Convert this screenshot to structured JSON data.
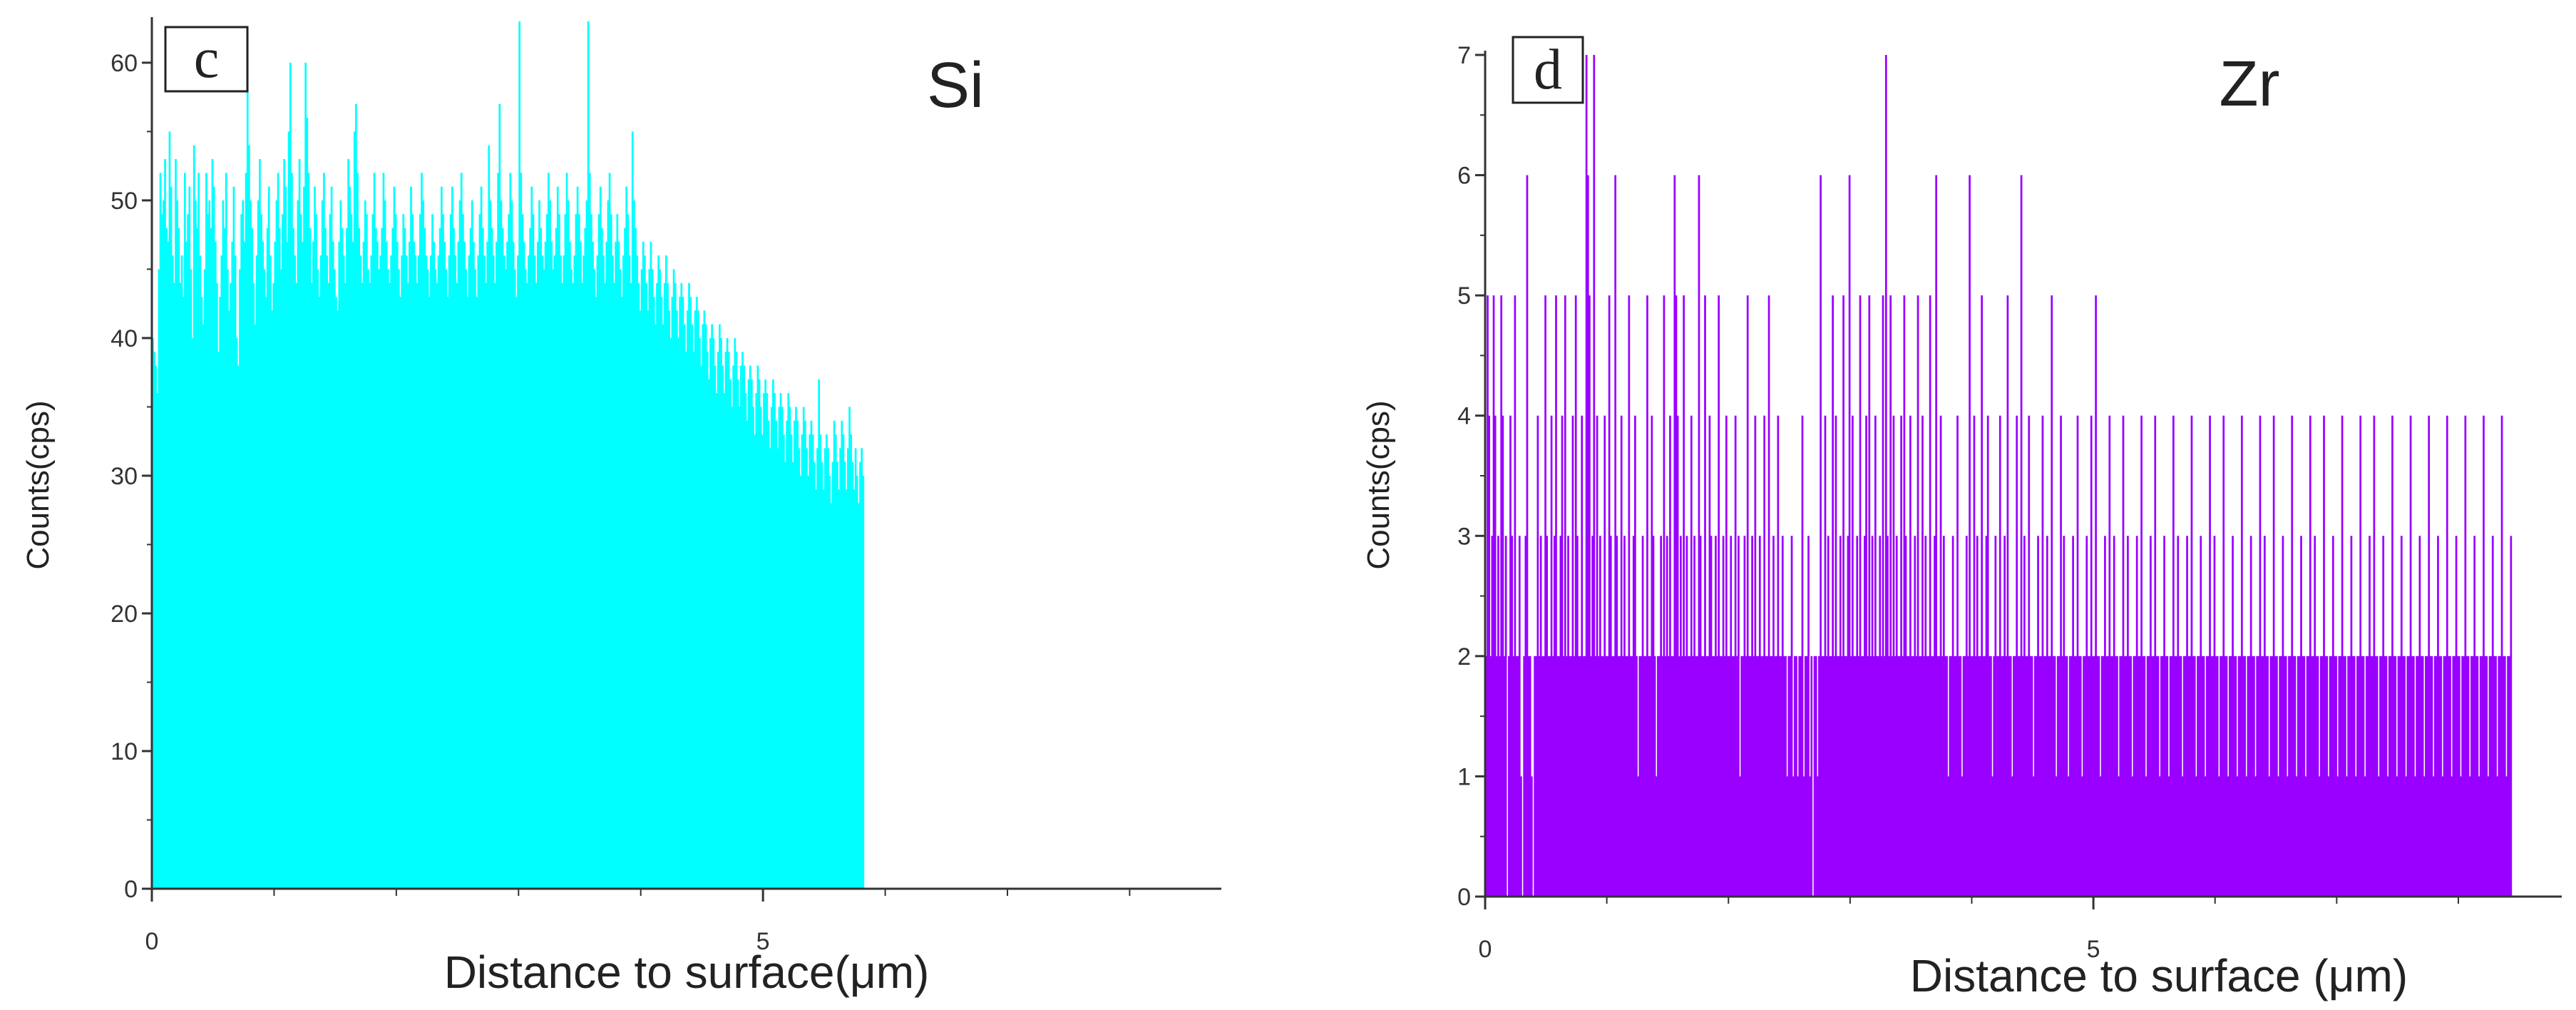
{
  "chart_data": [
    {
      "type": "bar",
      "panel_label": "c",
      "element": "Si",
      "color": "#00ffff",
      "xlabel": "Distance to surface(μm)",
      "ylabel": "Counts(cps)",
      "xlim": [
        0,
        8.75
      ],
      "ylim": [
        0,
        63
      ],
      "xticks": [
        {
          "value": 0,
          "label": "0"
        },
        {
          "value": 5,
          "label": "5"
        }
      ],
      "yticks": [
        {
          "value": 0,
          "label": "0"
        },
        {
          "value": 10,
          "label": "10"
        },
        {
          "value": 20,
          "label": "20"
        },
        {
          "value": 30,
          "label": "30"
        },
        {
          "value": 40,
          "label": "40"
        },
        {
          "value": 50,
          "label": "50"
        },
        {
          "value": 60,
          "label": "60"
        }
      ],
      "bin_width": 0.0125,
      "counts": [
        40,
        39,
        38,
        36,
        45,
        52,
        49,
        50,
        53,
        48,
        47,
        55,
        51,
        46,
        44,
        53,
        50,
        48,
        44,
        46,
        43,
        52,
        47,
        49,
        51,
        45,
        40,
        54,
        50,
        48,
        52,
        46,
        43,
        41,
        45,
        52,
        49,
        50,
        48,
        53,
        51,
        47,
        44,
        39,
        43,
        46,
        50,
        48,
        52,
        45,
        42,
        44,
        47,
        51,
        46,
        40,
        38,
        45,
        49,
        50,
        47,
        52,
        58,
        54,
        50,
        48,
        44,
        41,
        46,
        50,
        53,
        49,
        47,
        45,
        43,
        48,
        51,
        46,
        42,
        44,
        47,
        50,
        52,
        48,
        45,
        49,
        53,
        51,
        47,
        55,
        60,
        52,
        48,
        46,
        44,
        50,
        53,
        49,
        47,
        51,
        60,
        56,
        52,
        48,
        44,
        47,
        51,
        49,
        45,
        43,
        46,
        50,
        52,
        48,
        46,
        44,
        49,
        51,
        47,
        45,
        43,
        42,
        47,
        50,
        48,
        46,
        44,
        48,
        53,
        51,
        49,
        47,
        55,
        57,
        52,
        48,
        46,
        44,
        47,
        50,
        49,
        45,
        44,
        46,
        49,
        52,
        48,
        47,
        45,
        46,
        48,
        52,
        50,
        47,
        45,
        44,
        46,
        48,
        51,
        49,
        47,
        45,
        43,
        46,
        49,
        48,
        46,
        44,
        47,
        51,
        49,
        47,
        46,
        44,
        46,
        49,
        52,
        50,
        48,
        46,
        45,
        43,
        46,
        49,
        47,
        45,
        44,
        46,
        48,
        51,
        49,
        47,
        45,
        43,
        46,
        49,
        51,
        48,
        46,
        44,
        47,
        50,
        52,
        49,
        47,
        45,
        43,
        46,
        48,
        50,
        47,
        45,
        43,
        46,
        49,
        51,
        48,
        46,
        44,
        47,
        54,
        50,
        48,
        46,
        44,
        47,
        52,
        57,
        50,
        48,
        46,
        45,
        47,
        49,
        52,
        50,
        47,
        45,
        43,
        46,
        63,
        52,
        49,
        47,
        45,
        44,
        46,
        48,
        51,
        49,
        46,
        44,
        47,
        50,
        48,
        46,
        45,
        47,
        49,
        52,
        50,
        47,
        45,
        46,
        48,
        51,
        49,
        46,
        44,
        46,
        49,
        52,
        50,
        47,
        45,
        44,
        46,
        49,
        51,
        49,
        47,
        44,
        46,
        48,
        50,
        63,
        52,
        49,
        47,
        45,
        43,
        46,
        49,
        51,
        48,
        46,
        44,
        47,
        50,
        52,
        49,
        46,
        44,
        47,
        49,
        47,
        45,
        43,
        46,
        48,
        51,
        49,
        46,
        44,
        55,
        50,
        48,
        46,
        44,
        42,
        45,
        47,
        46,
        44,
        42,
        45,
        47,
        45,
        43,
        41,
        44,
        46,
        45,
        43,
        41,
        44,
        46,
        44,
        42,
        40,
        43,
        45,
        44,
        42,
        40,
        43,
        44,
        43,
        41,
        39,
        42,
        44,
        43,
        41,
        39,
        42,
        43,
        42,
        40,
        38,
        41,
        42,
        41,
        39,
        37,
        40,
        41,
        40,
        38,
        36,
        39,
        41,
        40,
        38,
        36,
        39,
        40,
        39,
        37,
        35,
        38,
        40,
        39,
        37,
        35,
        38,
        39,
        38,
        36,
        34,
        37,
        38,
        37,
        35,
        33,
        36,
        38,
        37,
        35,
        33,
        36,
        37,
        36,
        34,
        32,
        35,
        37,
        36,
        34,
        32,
        35,
        36,
        35,
        33,
        31,
        34,
        36,
        35,
        33,
        31,
        34,
        35,
        34,
        32,
        30,
        33,
        35,
        34,
        32,
        30,
        33,
        34,
        33,
        31,
        29,
        32,
        37,
        33,
        31,
        29,
        32,
        33,
        32,
        30,
        28,
        31,
        34,
        33,
        31,
        29,
        32,
        34,
        33,
        31,
        29,
        32,
        35,
        33,
        31,
        29,
        32,
        30,
        28,
        31,
        32,
        30
      ]
    },
    {
      "type": "bar",
      "panel_label": "d",
      "element": "Zr",
      "color": "#9900ff",
      "xlabel": "Distance to surface (μm)",
      "ylabel": "Counts(cps)",
      "xlim": [
        0,
        8.85
      ],
      "ylim": [
        0,
        7
      ],
      "xticks": [
        {
          "value": 0,
          "label": "0"
        },
        {
          "value": 5,
          "label": "5"
        }
      ],
      "yticks": [
        {
          "value": 0,
          "label": "0"
        },
        {
          "value": 1,
          "label": "1"
        },
        {
          "value": 2,
          "label": "2"
        },
        {
          "value": 3,
          "label": "3"
        },
        {
          "value": 4,
          "label": "4"
        },
        {
          "value": 5,
          "label": "5"
        },
        {
          "value": 6,
          "label": "6"
        },
        {
          "value": 7,
          "label": "7"
        }
      ],
      "bin_width": 0.0125,
      "counts": [
        2,
        5,
        4,
        2,
        3,
        5,
        4,
        2,
        3,
        2,
        5,
        4,
        2,
        3,
        0,
        2,
        4,
        3,
        2,
        5,
        2,
        2,
        3,
        1,
        0,
        2,
        3,
        6,
        2,
        2,
        1,
        0,
        2,
        2,
        4,
        2,
        3,
        2,
        2,
        5,
        3,
        2,
        2,
        4,
        2,
        3,
        5,
        2,
        2,
        3,
        4,
        2,
        5,
        2,
        3,
        2,
        2,
        4,
        2,
        5,
        3,
        2,
        2,
        4,
        2,
        2,
        7,
        6,
        5,
        2,
        3,
        7,
        2,
        4,
        2,
        3,
        2,
        2,
        4,
        2,
        2,
        5,
        3,
        2,
        2,
        6,
        3,
        2,
        2,
        4,
        2,
        3,
        2,
        2,
        5,
        2,
        2,
        3,
        4,
        2,
        1,
        2,
        2,
        3,
        2,
        2,
        5,
        2,
        2,
        4,
        3,
        2,
        1,
        2,
        2,
        3,
        2,
        5,
        2,
        3,
        2,
        4,
        2,
        2,
        6,
        5,
        4,
        2,
        3,
        2,
        5,
        2,
        3,
        2,
        2,
        4,
        2,
        3,
        2,
        2,
        6,
        3,
        2,
        2,
        5,
        2,
        2,
        4,
        3,
        2,
        2,
        3,
        2,
        5,
        2,
        2,
        3,
        2,
        4,
        2,
        2,
        3,
        2,
        2,
        4,
        2,
        3,
        1,
        2,
        2,
        3,
        2,
        5,
        2,
        2,
        3,
        2,
        4,
        2,
        2,
        3,
        2,
        2,
        4,
        2,
        2,
        5,
        2,
        2,
        3,
        2,
        2,
        4,
        2,
        2,
        3,
        2,
        2,
        1,
        2,
        2,
        3,
        1,
        2,
        2,
        1,
        2,
        2,
        4,
        1,
        2,
        2,
        3,
        1,
        2,
        0,
        2,
        2,
        1,
        2,
        6,
        2,
        2,
        4,
        2,
        3,
        2,
        2,
        5,
        2,
        4,
        2,
        2,
        3,
        2,
        5,
        2,
        2,
        3,
        6,
        2,
        4,
        2,
        2,
        3,
        2,
        5,
        2,
        2,
        3,
        4,
        2,
        5,
        2,
        3,
        2,
        4,
        2,
        2,
        3,
        2,
        5,
        2,
        7,
        3,
        2,
        5,
        2,
        4,
        2,
        3,
        2,
        2,
        4,
        2,
        5,
        3,
        2,
        2,
        4,
        2,
        2,
        3,
        2,
        5,
        2,
        2,
        4,
        2,
        3,
        2,
        2,
        5,
        2,
        2,
        3,
        6,
        2,
        2,
        4,
        2,
        3,
        2,
        2,
        1,
        2,
        2,
        3,
        2,
        2,
        4,
        2,
        2,
        1,
        2,
        2,
        3,
        2,
        6,
        2,
        2,
        4,
        2,
        3,
        2,
        2,
        5,
        2,
        2,
        3,
        4,
        2,
        2,
        1,
        2,
        3,
        2,
        2,
        4,
        2,
        2,
        3,
        2,
        5,
        2,
        2,
        1,
        2,
        2,
        4,
        2,
        2,
        6,
        2,
        3,
        2,
        2,
        4,
        2,
        2,
        1,
        2,
        2,
        3,
        2,
        2,
        4,
        2,
        2,
        3,
        2,
        2,
        5,
        2,
        2,
        1,
        2,
        2,
        4,
        2,
        3,
        2,
        2,
        1,
        2,
        2,
        3,
        2,
        2,
        4,
        2,
        2,
        1,
        2,
        2,
        3,
        2,
        2,
        4,
        2,
        2,
        5,
        2,
        2,
        1,
        2,
        2,
        3,
        2,
        2,
        4,
        2,
        2,
        3,
        2,
        2,
        1,
        2,
        2,
        4,
        2,
        2,
        3,
        2,
        2,
        1,
        2,
        2,
        3,
        2,
        2,
        4,
        2,
        2,
        1,
        2,
        2,
        3,
        2,
        2,
        4,
        2,
        2,
        1,
        2,
        2,
        3,
        2,
        2,
        1,
        2,
        2,
        4,
        2,
        2,
        3,
        2,
        2,
        1,
        2,
        2,
        3,
        2,
        2,
        4,
        2,
        2,
        1,
        2,
        2,
        3,
        2,
        2,
        1,
        2,
        2,
        4,
        2,
        2,
        3,
        2,
        2,
        1,
        2,
        2,
        4,
        2,
        2,
        1,
        2,
        2,
        3,
        2,
        2,
        1,
        2,
        2,
        4,
        2,
        2,
        1,
        2,
        2,
        3,
        2,
        2,
        1,
        2,
        2,
        4,
        2,
        2,
        3,
        2,
        2,
        1,
        2,
        2,
        4,
        2,
        2,
        1,
        2,
        2,
        3,
        2,
        2,
        1,
        2,
        2,
        4,
        2,
        2,
        1,
        2,
        2,
        3,
        2,
        2,
        1,
        2,
        2,
        4,
        2,
        2,
        3,
        2,
        2,
        1,
        2,
        2,
        4,
        2,
        2,
        1,
        2,
        2,
        3,
        2,
        2,
        1,
        2,
        2,
        4,
        2,
        2,
        1,
        2,
        2,
        3,
        2,
        2,
        1,
        2,
        2,
        4,
        2,
        2,
        1,
        2,
        2,
        3,
        2,
        2,
        4,
        2,
        2,
        1,
        2,
        2,
        3,
        2,
        2,
        1,
        2,
        2,
        4,
        2,
        2,
        1,
        2,
        2,
        3,
        2,
        2,
        1,
        2,
        2,
        4,
        2,
        2,
        1,
        2,
        2,
        3,
        2,
        2,
        1,
        2,
        2,
        4,
        2,
        2,
        1,
        2,
        2,
        3,
        2,
        2,
        1,
        2,
        2,
        4,
        2,
        2,
        1,
        2,
        2,
        3,
        2,
        2,
        1,
        2,
        2,
        4,
        2,
        2,
        1,
        2,
        2,
        3,
        2,
        2,
        1,
        2,
        2,
        4,
        2,
        2,
        1,
        2,
        2,
        3,
        2,
        2,
        1,
        2,
        2,
        4,
        2,
        2,
        1,
        2,
        2,
        3
      ]
    }
  ]
}
